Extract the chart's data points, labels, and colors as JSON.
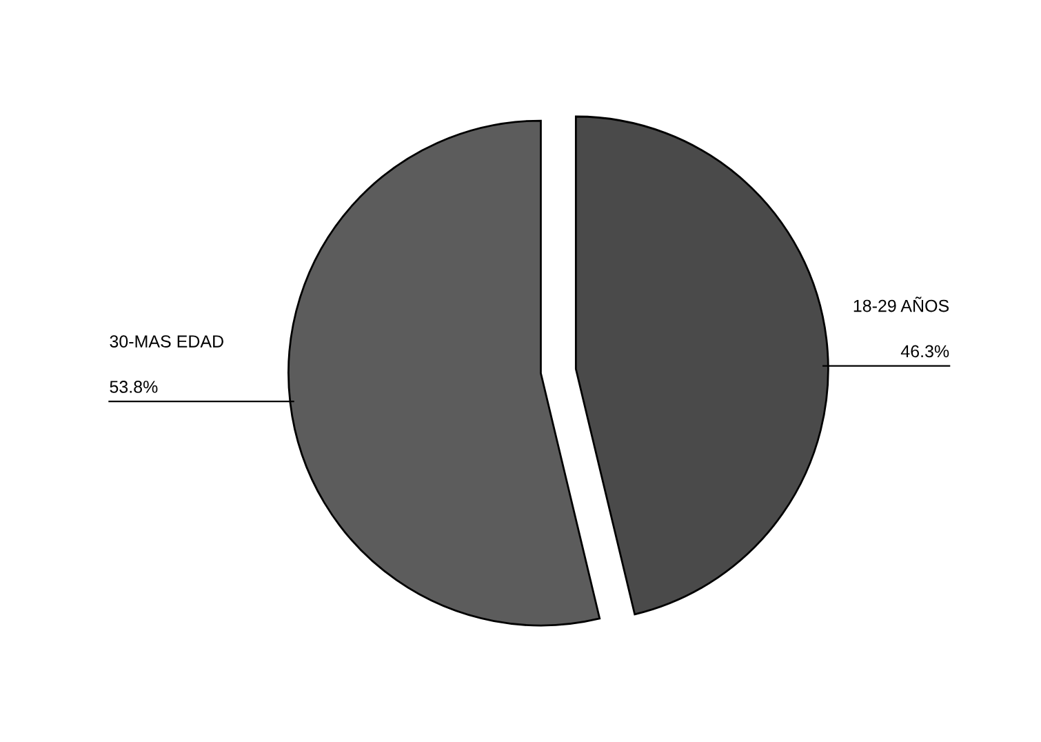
{
  "chart_data": {
    "type": "pie",
    "categories": [
      "18-29 AÑOS",
      "30-MAS EDAD"
    ],
    "values": [
      46.3,
      53.8
    ],
    "value_labels": [
      "46.3%",
      "53.8%"
    ],
    "colors": [
      "#4a4a4a",
      "#5c5c5c"
    ],
    "legend": false
  }
}
